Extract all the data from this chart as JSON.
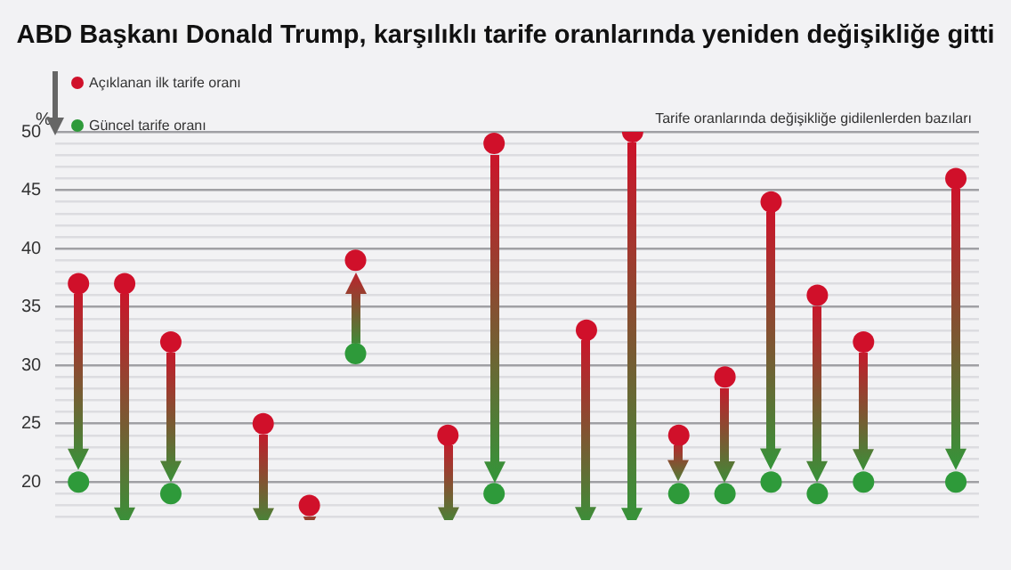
{
  "chart_data": {
    "type": "scatter",
    "title": "ABD Başkanı Donald Trump, karşılıklı tarife oranlarında yeniden değişikliğe gitti",
    "ylabel": "%",
    "annotations": [
      "Tarife oranlarında değişikliğe gidilenlerden bazıları"
    ],
    "categories": [
      null,
      null,
      null,
      null,
      null,
      null,
      null,
      null,
      null,
      null,
      null,
      null,
      null,
      null,
      null,
      null,
      null,
      null,
      null,
      null
    ],
    "series": [
      {
        "name": "Açıklanan ilk tarife oranı",
        "colors": [
          "#d0102a",
          "#d0102a",
          "#d0102a",
          "#d0102a",
          "#d0102a",
          "#d0102a",
          "#2e9a3a",
          "#d0102a",
          "#d0102a",
          "#d0102a",
          "#d0102a",
          "#d0102a",
          "#d0102a",
          "#d0102a",
          "#d0102a",
          "#d0102a",
          "#d0102a",
          "#d0102a",
          "#d0102a",
          "#d0102a"
        ],
        "values": [
          37,
          37,
          32,
          null,
          25,
          18,
          31,
          null,
          24,
          49,
          null,
          33,
          50,
          24,
          29,
          44,
          36,
          32,
          null,
          46
        ]
      },
      {
        "name": "Güncel tarife oranı",
        "colors": [
          "#2e9a3a",
          "#2e9a3a",
          "#2e9a3a",
          "#2e9a3a",
          "#2e9a3a",
          "#2e9a3a",
          "#d0102a",
          "#2e9a3a",
          "#2e9a3a",
          "#2e9a3a",
          "#2e9a3a",
          "#2e9a3a",
          "#2e9a3a",
          "#2e9a3a",
          "#2e9a3a",
          "#2e9a3a",
          "#2e9a3a",
          "#2e9a3a",
          "#2e9a3a",
          "#2e9a3a"
        ],
        "values": [
          20,
          null,
          19,
          null,
          null,
          null,
          39,
          null,
          null,
          19,
          null,
          null,
          null,
          19,
          19,
          20,
          19,
          20,
          null,
          20
        ]
      }
    ],
    "ylim": [
      16.8,
      50
    ],
    "yticks": [
      {
        "value": 17,
        "label": null
      },
      {
        "value": 18,
        "label": null
      },
      {
        "value": 19,
        "label": null
      },
      20,
      {
        "value": 21,
        "label": null
      },
      {
        "value": 22,
        "label": null
      },
      {
        "value": 23,
        "label": null
      },
      {
        "value": 24,
        "label": null
      },
      25,
      {
        "value": 26,
        "label": null
      },
      {
        "value": 27,
        "label": null
      },
      {
        "value": 28,
        "label": null
      },
      {
        "value": 29,
        "label": null
      },
      30,
      {
        "value": 31,
        "label": null
      },
      {
        "value": 32,
        "label": null
      },
      {
        "value": 33,
        "label": null
      },
      {
        "value": 34,
        "label": null
      },
      35,
      {
        "value": 36,
        "label": null
      },
      {
        "value": 37,
        "label": null
      },
      {
        "value": 38,
        "label": null
      },
      {
        "value": 39,
        "label": null
      },
      40,
      {
        "value": 41,
        "label": null
      },
      {
        "value": 42,
        "label": null
      },
      {
        "value": 43,
        "label": null
      },
      {
        "value": 44,
        "label": null
      },
      45,
      {
        "value": 46,
        "label": null
      },
      {
        "value": 47,
        "label": null
      },
      {
        "value": 48,
        "label": null
      },
      {
        "value": 49,
        "label": null
      },
      50
    ],
    "grid": "y",
    "legend": "top left",
    "marker": "circle"
  }
}
